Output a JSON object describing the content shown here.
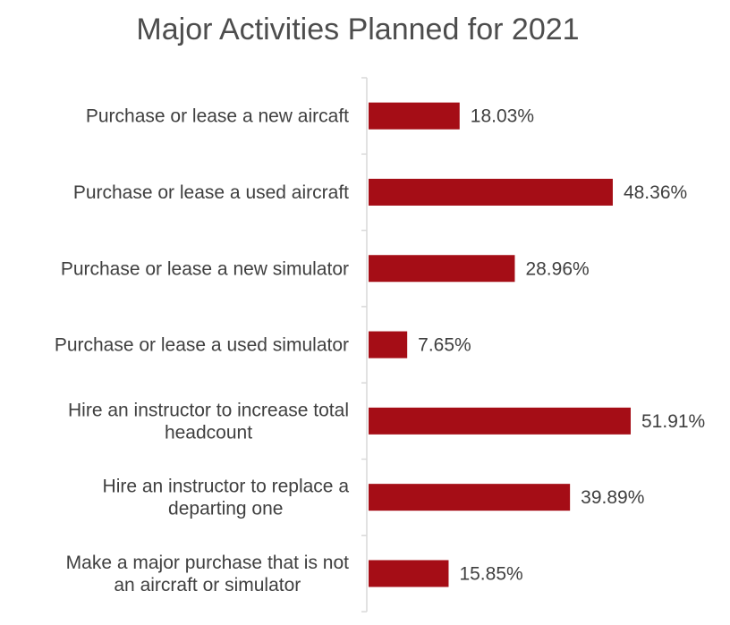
{
  "chart_data": {
    "type": "bar",
    "orientation": "horizontal",
    "title": "Major Activities Planned for 2021",
    "categories": [
      [
        "Purchase or lease a new aircaft"
      ],
      [
        "Purchase or lease a used aircraft"
      ],
      [
        "Purchase or lease a new simulator"
      ],
      [
        "Purchase or lease a used simulator"
      ],
      [
        "Hire an instructor to increase total",
        "headcount"
      ],
      [
        "Hire an instructor to replace a",
        "departing one"
      ],
      [
        "Make a major purchase that is not",
        "an aircraft or simulator"
      ]
    ],
    "values": [
      18.03,
      48.36,
      28.96,
      7.65,
      51.91,
      39.89,
      15.85
    ],
    "data_labels": [
      "18.03%",
      "48.36%",
      "28.96%",
      "7.65%",
      "51.91%",
      "39.89%",
      "15.85%"
    ],
    "xlabel": "",
    "ylabel": "",
    "xlim": [
      0,
      60
    ],
    "grid": false,
    "legend": "none",
    "bar_color": "#a50d16",
    "axis_color": "#d9d9d9"
  }
}
